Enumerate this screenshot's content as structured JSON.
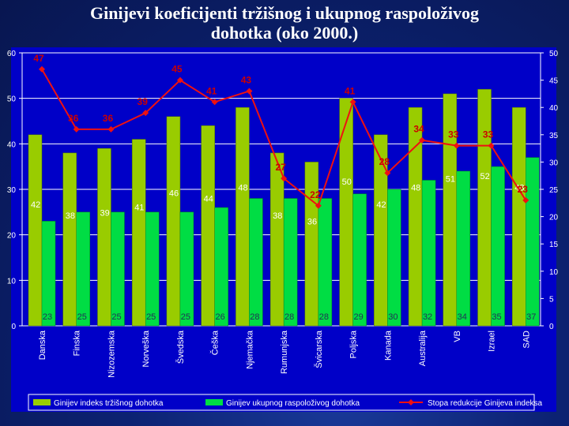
{
  "title_line1": "Ginijevi koeficijenti tržišnog i ukupnog raspoloživog",
  "title_line2": "dohotka (oko 2000.)",
  "colors": {
    "market": "#99cc00",
    "disposable": "#00dd44",
    "line": "#ee1111",
    "panel": "#0000c8",
    "grid": "#ffffff",
    "label_dark": "#223355",
    "label_red": "#cc0000"
  },
  "chart_data": {
    "type": "bar",
    "categories": [
      "Danska",
      "Finska",
      "Nizozemska",
      "Norveška",
      "Švedska",
      "Češka",
      "Njemačka",
      "Rumunjska",
      "Švicarska",
      "Poljska",
      "Kanada",
      "Australija",
      "VB",
      "Izrael",
      "SAD"
    ],
    "series": [
      {
        "name": "Ginijev indeks tržišnog dohotka",
        "axis": "left",
        "values": [
          42,
          38,
          39,
          41,
          46,
          44,
          48,
          38,
          36,
          50,
          42,
          48,
          51,
          52,
          48
        ]
      },
      {
        "name": "Ginijev ukupnog raspoloživog dohotka",
        "axis": "left",
        "values": [
          23,
          25,
          25,
          25,
          25,
          26,
          28,
          28,
          28,
          29,
          30,
          32,
          34,
          35,
          37
        ]
      },
      {
        "name": "Stopa redukcije Ginijeva indeksa",
        "type": "line",
        "axis": "right",
        "values": [
          47,
          36,
          36,
          39,
          45,
          41,
          43,
          27,
          22,
          41,
          28,
          34,
          33,
          33,
          23
        ]
      }
    ],
    "ylim_left": [
      0,
      60
    ],
    "yticks_left": [
      0,
      10,
      20,
      30,
      40,
      50,
      60
    ],
    "ylim_right": [
      0,
      50
    ],
    "yticks_right": [
      0,
      5,
      10,
      15,
      20,
      25,
      30,
      35,
      40,
      45,
      50
    ],
    "legend": [
      "Ginijev indeks tržišnog dohotka",
      "Ginijev ukupnog raspoloživog dohotka",
      "Stopa redukcije Ginijeva indeksa"
    ],
    "legend_position": "bottom"
  }
}
